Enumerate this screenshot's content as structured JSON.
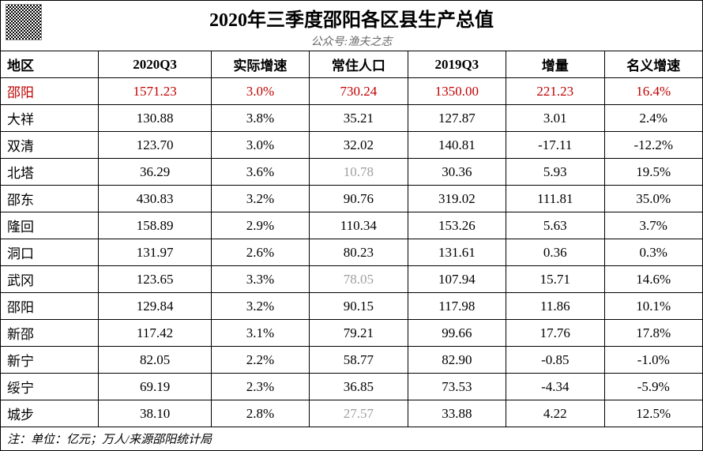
{
  "header": {
    "title": "2020年三季度邵阳各区县生产总值",
    "subtitle": "公众号:渔夫之志"
  },
  "table": {
    "columns": [
      "地区",
      "2020Q3",
      "实际增速",
      "常住人口",
      "2019Q3",
      "增量",
      "名义增速"
    ],
    "rows": [
      {
        "cells": [
          "邵阳",
          "1571.23",
          "3.0%",
          "730.24",
          "1350.00",
          "221.23",
          "16.4%"
        ],
        "row_red": true
      },
      {
        "cells": [
          "大祥",
          "130.88",
          "3.8%",
          "35.21",
          "127.87",
          "3.01",
          "2.4%"
        ]
      },
      {
        "cells": [
          "双清",
          "123.70",
          "3.0%",
          "32.02",
          "140.81",
          "-17.11",
          "-12.2%"
        ]
      },
      {
        "cells": [
          "北塔",
          "36.29",
          "3.6%",
          "10.78",
          "30.36",
          "5.93",
          "19.5%"
        ],
        "gray_cols": [
          3
        ]
      },
      {
        "cells": [
          "邵东",
          "430.83",
          "3.2%",
          "90.76",
          "319.02",
          "111.81",
          "35.0%"
        ]
      },
      {
        "cells": [
          "隆回",
          "158.89",
          "2.9%",
          "110.34",
          "153.26",
          "5.63",
          "3.7%"
        ]
      },
      {
        "cells": [
          "洞口",
          "131.97",
          "2.6%",
          "80.23",
          "131.61",
          "0.36",
          "0.3%"
        ]
      },
      {
        "cells": [
          "武冈",
          "123.65",
          "3.3%",
          "78.05",
          "107.94",
          "15.71",
          "14.6%"
        ],
        "gray_cols": [
          3
        ]
      },
      {
        "cells": [
          "邵阳",
          "129.84",
          "3.2%",
          "90.15",
          "117.98",
          "11.86",
          "10.1%"
        ]
      },
      {
        "cells": [
          "新邵",
          "117.42",
          "3.1%",
          "79.21",
          "99.66",
          "17.76",
          "17.8%"
        ]
      },
      {
        "cells": [
          "新宁",
          "82.05",
          "2.2%",
          "58.77",
          "82.90",
          "-0.85",
          "-1.0%"
        ]
      },
      {
        "cells": [
          "绥宁",
          "69.19",
          "2.3%",
          "36.85",
          "73.53",
          "-4.34",
          "-5.9%"
        ]
      },
      {
        "cells": [
          "城步",
          "38.10",
          "2.8%",
          "27.57",
          "33.88",
          "4.22",
          "12.5%"
        ],
        "gray_cols": [
          3
        ]
      }
    ]
  },
  "footer": "注：单位：亿元；万人/来源邵阳统计局",
  "colors": {
    "red": "#c00000",
    "gray": "#9e9e9e",
    "border": "#000000",
    "background": "#ffffff"
  }
}
